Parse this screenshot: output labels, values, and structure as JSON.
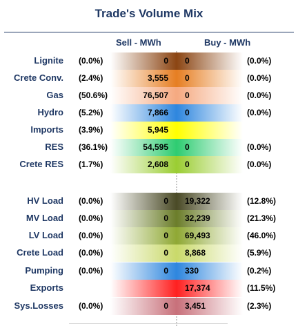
{
  "title": "Trade's Volume Mix",
  "headers": {
    "sell": "Sell - MWh",
    "buy": "Buy - MWh"
  },
  "colors": {
    "lignite": "#8b4513",
    "crete_conv": "#e67e22",
    "gas": "#f5a980",
    "hydro": "#2e86de",
    "imports": "#ffff00",
    "res": "#2ecc71",
    "crete_res": "#9acd32",
    "hv_load": "#4a4a26",
    "mv_load": "#6b7d2a",
    "lv_load": "#8fa834",
    "crete_load": "#c9d96a",
    "pumping": "#2e86de",
    "exports": "#ff2020",
    "sys_losses": "#c8707a"
  },
  "rows": [
    {
      "label": "Lignite",
      "sell_pct": "(0.0%)",
      "sell": "0",
      "buy": "0",
      "buy_pct": "(0.0%)"
    },
    {
      "label": "Crete Conv.",
      "sell_pct": "(2.4%)",
      "sell": "3,555",
      "buy": "0",
      "buy_pct": "(0.0%)"
    },
    {
      "label": "Gas",
      "sell_pct": "(50.6%)",
      "sell": "76,507",
      "buy": "0",
      "buy_pct": "(0.0%)"
    },
    {
      "label": "Hydro",
      "sell_pct": "(5.2%)",
      "sell": "7,866",
      "buy": "0",
      "buy_pct": "(0.0%)"
    },
    {
      "label": "Imports",
      "sell_pct": "(3.9%)",
      "sell": "5,945",
      "buy": "",
      "buy_pct": ""
    },
    {
      "label": "RES",
      "sell_pct": "(36.1%)",
      "sell": "54,595",
      "buy": "0",
      "buy_pct": "(0.0%)"
    },
    {
      "label": "Crete RES",
      "sell_pct": "(1.7%)",
      "sell": "2,608",
      "buy": "0",
      "buy_pct": "(0.0%)"
    },
    {
      "label": "HV Load",
      "sell_pct": "(0.0%)",
      "sell": "0",
      "buy": "19,322",
      "buy_pct": "(12.8%)"
    },
    {
      "label": "MV Load",
      "sell_pct": "(0.0%)",
      "sell": "0",
      "buy": "32,239",
      "buy_pct": "(21.3%)"
    },
    {
      "label": "LV Load",
      "sell_pct": "(0.0%)",
      "sell": "0",
      "buy": "69,493",
      "buy_pct": "(46.0%)"
    },
    {
      "label": "Crete Load",
      "sell_pct": "(0.0%)",
      "sell": "0",
      "buy": "8,868",
      "buy_pct": "(5.9%)"
    },
    {
      "label": "Pumping",
      "sell_pct": "(0.0%)",
      "sell": "0",
      "buy": "330",
      "buy_pct": "(0.2%)"
    },
    {
      "label": "Exports",
      "sell_pct": "",
      "sell": "",
      "buy": "17,374",
      "buy_pct": "(11.5%)"
    },
    {
      "label": "Sys.Losses",
      "sell_pct": "(0.0%)",
      "sell": "0",
      "buy": "3,451",
      "buy_pct": "(2.3%)"
    }
  ]
}
